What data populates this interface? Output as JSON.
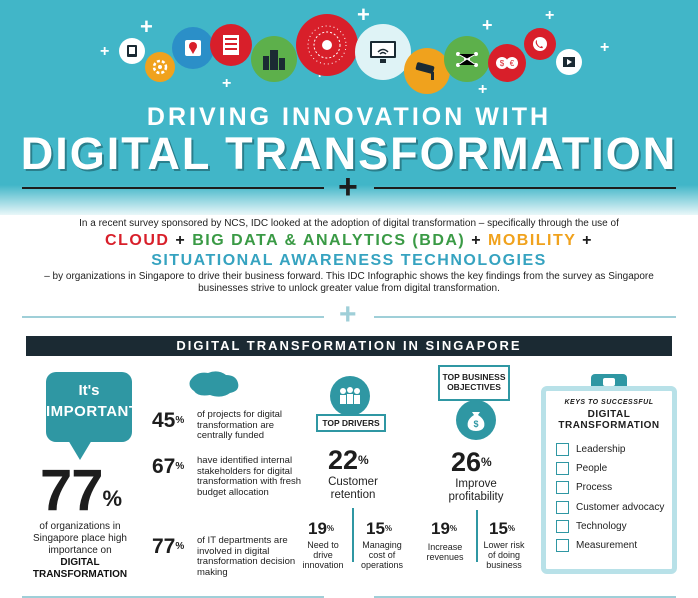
{
  "header": {
    "subtitle": "DRIVING INNOVATION WITH",
    "title": "DIGITAL TRANSFORMATION"
  },
  "intro": {
    "text_before": "In a recent survey sponsored by NCS, IDC looked at the adoption of digital transformation – specifically through the use of",
    "tech1": "CLOUD",
    "tech2": "BIG DATA & ANALYTICS (BDA)",
    "tech3": "MOBILITY",
    "tech4": "SITUATIONAL AWARENESS TECHNOLOGIES",
    "plus": "+",
    "text_after": "– by organizations in Singapore to drive their business forward. This IDC Infographic shows the key findings from the survey as Singapore businesses strive to unlock greater value from digital transformation.",
    "colors": {
      "cloud": "#d81f2a",
      "bda": "#3a9a45",
      "mobility": "#f0a21d",
      "situational": "#36a3c0"
    }
  },
  "section": {
    "title": "DIGITAL TRANSFORMATION IN SINGAPORE"
  },
  "important": {
    "line1": "It's",
    "line2": "IMPORTANT!",
    "value": "77",
    "unit": "%",
    "caption": "of organizations in Singapore place high importance on",
    "caption_bold": "DIGITAL TRANSFORMATION"
  },
  "stats": [
    {
      "value": "45",
      "unit": "%",
      "text": "of projects for digital transformation are centrally funded"
    },
    {
      "value": "67",
      "unit": "%",
      "text": "have identified internal stakeholders for digital transformation with fresh budget allocation"
    },
    {
      "value": "77",
      "unit": "%",
      "text": "of IT departments are involved in digital transformation decision making"
    }
  ],
  "drivers": {
    "label": "TOP DRIVERS",
    "main": {
      "value": "22",
      "unit": "%",
      "label": "Customer retention"
    },
    "sub": [
      {
        "value": "19",
        "unit": "%",
        "label": "Need to drive innovation"
      },
      {
        "value": "15",
        "unit": "%",
        "label": "Managing cost of operations"
      }
    ]
  },
  "objectives": {
    "label": "TOP BUSINESS OBJECTIVES",
    "main": {
      "value": "26",
      "unit": "%",
      "label": "Improve profitability"
    },
    "sub": [
      {
        "value": "19",
        "unit": "%",
        "label": "Increase revenues"
      },
      {
        "value": "15",
        "unit": "%",
        "label": "Lower risk of doing business"
      }
    ]
  },
  "keys": {
    "kicker": "KEYS TO SUCCESSFUL",
    "title": "DIGITAL TRANSFORMATION",
    "items": [
      "Leadership",
      "People",
      "Process",
      "Customer advocacy",
      "Technology",
      "Measurement"
    ]
  },
  "theme": {
    "teal": "#41b6c8",
    "dark_teal": "#2f97a3",
    "navy": "#1b2a33"
  }
}
